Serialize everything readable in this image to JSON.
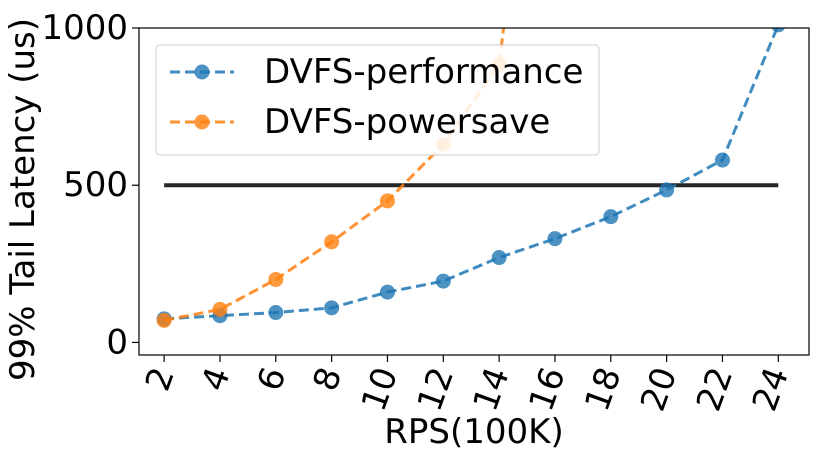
{
  "chart_data": {
    "type": "line",
    "xlabel": "RPS(100K)",
    "ylabel": "99% Tail Latency (us)",
    "xlim": [
      1.1,
      25.1
    ],
    "ylim": [
      -40,
      1000
    ],
    "x_ticks": [
      "2",
      "4",
      "6",
      "8",
      "10",
      "12",
      "14",
      "16",
      "18",
      "20",
      "22",
      "24"
    ],
    "y_ticks": [
      "0",
      "500",
      "1000"
    ],
    "legend_position": "top-left",
    "reference_line": {
      "y": 500,
      "x_start": 2,
      "x_end": 24,
      "color": "#262626"
    },
    "series": [
      {
        "name": "DVFS-performance",
        "color": "#1f77b4",
        "x": [
          2,
          4,
          6,
          8,
          10,
          12,
          14,
          16,
          18,
          20,
          22,
          24
        ],
        "y": [
          75,
          85,
          95,
          110,
          160,
          195,
          270,
          330,
          400,
          485,
          580,
          1010
        ]
      },
      {
        "name": "DVFS-powersave",
        "color": "#ff7f0e",
        "x": [
          2,
          4,
          6,
          8,
          10,
          12,
          14,
          14.3
        ],
        "y": [
          70,
          105,
          200,
          320,
          450,
          630,
          885,
          1100
        ]
      }
    ]
  }
}
